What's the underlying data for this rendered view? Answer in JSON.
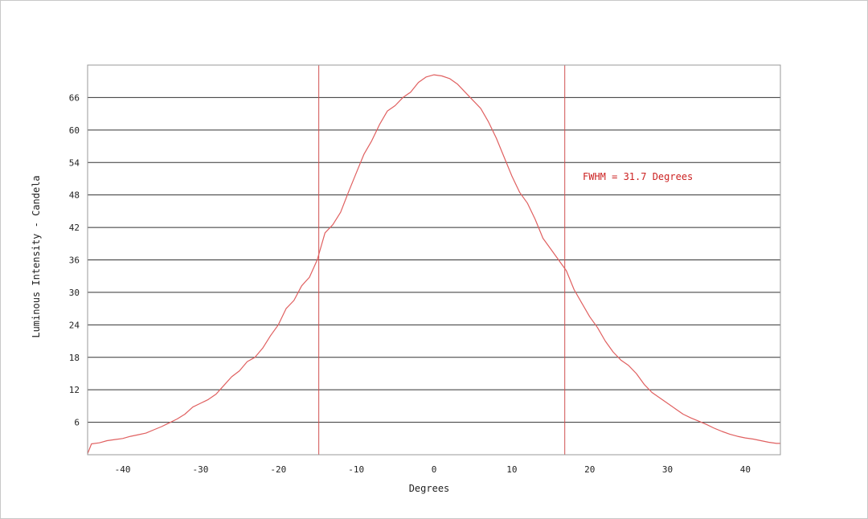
{
  "chart_data": {
    "type": "line",
    "title": "",
    "xlabel": "Degrees",
    "ylabel": "Luminous Intensity - Candela",
    "xlim": [
      -44.5,
      44.5
    ],
    "ylim": [
      0,
      72
    ],
    "x_ticks": [
      -40,
      -30,
      -20,
      -10,
      0,
      10,
      20,
      30,
      40
    ],
    "y_ticks": [
      6,
      12,
      18,
      24,
      30,
      36,
      42,
      48,
      54,
      60,
      66
    ],
    "grid": "horizontal",
    "legend": "none",
    "colors": {
      "series": "#e06060",
      "markers": "#d05050",
      "annotation": "#cc2222",
      "grid": "#333333",
      "frame": "#999999"
    },
    "series": [
      {
        "x": [
          -44.5,
          -44,
          -43,
          -42,
          -41,
          -40,
          -39,
          -38,
          -37,
          -36,
          -35,
          -34,
          -33,
          -32,
          -31,
          -30,
          -29,
          -28,
          -27,
          -26,
          -25,
          -24,
          -23,
          -22,
          -21,
          -20,
          -19,
          -18,
          -17,
          -16,
          -15,
          -14,
          -13,
          -12,
          -11,
          -10,
          -9,
          -8,
          -7,
          -6,
          -5,
          -4,
          -3,
          -2,
          -1,
          0,
          1,
          2,
          3,
          4,
          5,
          6,
          7,
          8,
          9,
          10,
          11,
          12,
          13,
          14,
          15,
          16,
          17,
          18,
          19,
          20,
          21,
          22,
          23,
          24,
          25,
          26,
          27,
          28,
          29,
          30,
          31,
          32,
          33,
          34,
          35,
          36,
          37,
          38,
          39,
          40,
          41,
          42,
          43,
          44,
          44.5
        ],
        "y": [
          0.2,
          2.0,
          2.2,
          2.6,
          2.8,
          3.0,
          3.4,
          3.7,
          4.0,
          4.6,
          5.2,
          5.9,
          6.6,
          7.5,
          8.8,
          9.5,
          10.2,
          11.2,
          12.8,
          14.4,
          15.5,
          17.2,
          18.0,
          19.7,
          22.0,
          24.0,
          27.0,
          28.5,
          31.2,
          32.8,
          36.0,
          41.0,
          42.5,
          44.8,
          48.5,
          52.0,
          55.5,
          58.0,
          61.0,
          63.5,
          64.5,
          66.0,
          67.0,
          68.8,
          69.8,
          70.2,
          70.0,
          69.5,
          68.5,
          67.0,
          65.5,
          64.0,
          61.5,
          58.5,
          55.0,
          51.5,
          48.5,
          46.5,
          43.5,
          40.0,
          38.0,
          36.0,
          34.0,
          30.5,
          28.0,
          25.5,
          23.5,
          21.0,
          19.0,
          17.5,
          16.5,
          15.0,
          13.0,
          11.5,
          10.5,
          9.5,
          8.5,
          7.5,
          6.8,
          6.2,
          5.6,
          4.9,
          4.3,
          3.8,
          3.4,
          3.1,
          2.9,
          2.6,
          2.3,
          2.1,
          2.1
        ]
      }
    ],
    "vertical_markers": [
      -14.8,
      16.8
    ],
    "annotation": "FWHM = 31.7 Degrees"
  }
}
